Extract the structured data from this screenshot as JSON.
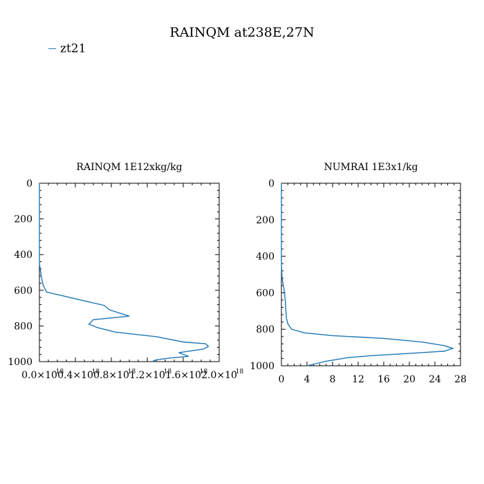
{
  "title": "RAINQM at238E,27N",
  "legend": {
    "label": "zt21",
    "color": "#1f77b4"
  },
  "chart_data": [
    {
      "type": "line",
      "title": "RAINQM  1E12xkg/kg",
      "xlabel": "",
      "ylabel": "",
      "xlim": [
        0,
        2e-18
      ],
      "ylim": [
        1000,
        0
      ],
      "x_ticks": [
        0,
        4e-19,
        8e-19,
        1.2e-18,
        1.6e-18,
        2e-18
      ],
      "x_tick_labels": [
        "0.0×10",
        "0.4×10",
        "0.8×10",
        "1.2×10",
        "1.6×10",
        "2.0×10"
      ],
      "x_tick_exps": [
        "-18",
        "-18",
        "-18",
        "-18",
        "-18",
        "-18"
      ],
      "y_ticks": [
        0,
        200,
        400,
        600,
        800,
        1000
      ],
      "y_tick_labels": [
        "0",
        "200",
        "400",
        "600",
        "800",
        "1000"
      ],
      "series": [
        {
          "name": "zt21",
          "x": [
            0,
            0,
            2e-20,
            4e-20,
            6e-20,
            8e-20,
            7.2e-19,
            7.8e-19,
            1e-18,
            6e-19,
            5.5e-19,
            6.5e-19,
            8.5e-19,
            1.3e-18,
            1.6e-18,
            1.85e-18,
            1.88e-18,
            1.82e-18,
            1.55e-18,
            1.66e-18,
            1.45e-18,
            1.3e-18,
            1.25e-18
          ],
          "y": [
            0,
            450,
            520,
            570,
            590,
            610,
            685,
            710,
            745,
            765,
            790,
            810,
            835,
            860,
            890,
            900,
            915,
            930,
            950,
            970,
            980,
            990,
            1000
          ],
          "color": "#1f77b4"
        }
      ]
    },
    {
      "type": "line",
      "title": "NUMRAI  1E3x1/kg",
      "xlabel": "",
      "ylabel": "",
      "xlim": [
        0,
        28
      ],
      "ylim": [
        1000,
        0
      ],
      "x_ticks": [
        0,
        4,
        8,
        12,
        16,
        20,
        24,
        28
      ],
      "x_tick_labels": [
        "0",
        "4",
        "8",
        "12",
        "16",
        "20",
        "24",
        "28"
      ],
      "y_ticks": [
        0,
        200,
        400,
        600,
        800,
        1000
      ],
      "y_tick_labels": [
        "0",
        "200",
        "400",
        "600",
        "800",
        "1000"
      ],
      "series": [
        {
          "name": "zt21",
          "x": [
            0,
            0,
            0.1,
            0.4,
            0.6,
            0.7,
            0.8,
            1.0,
            1.6,
            3.6,
            8.0,
            16.0,
            22.0,
            25.5,
            26.8,
            25.5,
            21.0,
            14.0,
            10.5,
            7.0,
            4.0
          ],
          "y": [
            0,
            440,
            520,
            580,
            640,
            700,
            740,
            770,
            800,
            820,
            835,
            850,
            870,
            890,
            905,
            920,
            930,
            945,
            955,
            975,
            1000
          ],
          "color": "#1f77b4"
        }
      ]
    }
  ]
}
